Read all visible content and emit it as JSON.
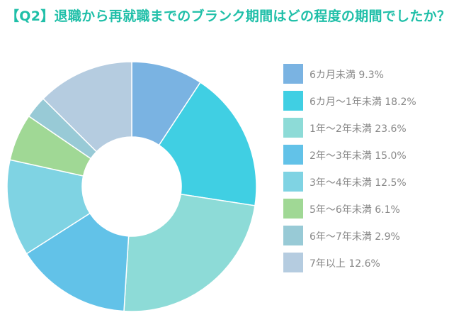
{
  "title": "【Q2】退職から再就職までのブランク期間はどの程度の期間でしたか？",
  "chart_data": {
    "type": "pie",
    "donut": true,
    "legend_position": "right",
    "slices": [
      {
        "label": "6カ月未満",
        "value": 9.3,
        "legend": "6カ月未満 9.3%",
        "color": "#7ab3e2"
      },
      {
        "label": "6カ月～1年未満",
        "value": 18.2,
        "legend": "6カ月～1年未満 18.2%",
        "color": "#40cfe3"
      },
      {
        "label": "1年～2年未満",
        "value": 23.6,
        "legend": "1年～2年未満 23.6%",
        "color": "#8ddbd7"
      },
      {
        "label": "2年～3年未満",
        "value": 15.0,
        "legend": "2年～3年未満 15.0%",
        "color": "#62c2e8"
      },
      {
        "label": "3年～4年未満",
        "value": 12.5,
        "legend": "3年～4年未満 12.5%",
        "color": "#7fd3e3"
      },
      {
        "label": "5年～6年未満",
        "value": 6.1,
        "legend": "5年～6年未満 6.1%",
        "color": "#a0d895"
      },
      {
        "label": "6年～7年未満",
        "value": 2.9,
        "legend": "6年～7年未満 2.9%",
        "color": "#98cad6"
      },
      {
        "label": "7年以上",
        "value": 12.6,
        "legend": "7年以上 12.6%",
        "color": "#b5cce0"
      }
    ]
  }
}
